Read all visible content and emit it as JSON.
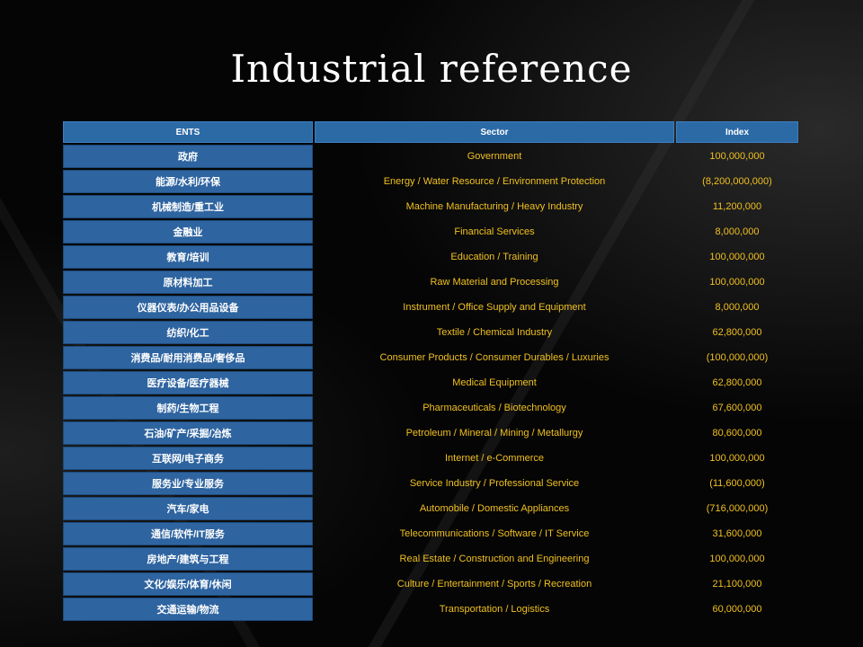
{
  "title": "Industrial reference",
  "table": {
    "headers": [
      "ENTS",
      "Sector",
      "Index"
    ],
    "rows": [
      [
        "政府",
        "Government",
        "100,000,000"
      ],
      [
        "能源/水利/环保",
        "Energy / Water Resource / Environment Protection",
        "(8,200,000,000)"
      ],
      [
        "机械制造/重工业",
        "Machine Manufacturing / Heavy Industry",
        "11,200,000"
      ],
      [
        "金融业",
        "Financial Services",
        "8,000,000"
      ],
      [
        "教育/培训",
        "Education / Training",
        "100,000,000"
      ],
      [
        "原材料加工",
        "Raw Material and Processing",
        "100,000,000"
      ],
      [
        "仪器仪表/办公用品设备",
        "Instrument / Office Supply and Equipment",
        "8,000,000"
      ],
      [
        "纺织/化工",
        "Textile / Chemical Industry",
        "62,800,000"
      ],
      [
        "消费品/耐用消费品/奢侈品",
        "Consumer Products / Consumer Durables / Luxuries",
        "(100,000,000)"
      ],
      [
        "医疗设备/医疗器械",
        "Medical Equipment",
        "62,800,000"
      ],
      [
        "制药/生物工程",
        "Pharmaceuticals / Biotechnology",
        "67,600,000"
      ],
      [
        "石油/矿产/采掘/冶炼",
        "Petroleum / Mineral / Mining / Metallurgy",
        "80,600,000"
      ],
      [
        "互联网/电子商务",
        "Internet / e-Commerce",
        "100,000,000"
      ],
      [
        "服务业/专业服务",
        "Service Industry / Professional Service",
        "(11,600,000)"
      ],
      [
        "汽车/家电",
        "Automobile / Domestic Appliances",
        "(716,000,000)"
      ],
      [
        "通信/软件/IT服务",
        "Telecommunications / Software / IT Service",
        "31,600,000"
      ],
      [
        "房地产/建筑与工程",
        "Real Estate / Construction and Engineering",
        "100,000,000"
      ],
      [
        "文化/娱乐/体育/休闲",
        "Culture / Entertainment / Sports / Recreation",
        "21,100,000"
      ],
      [
        "交通运输/物流",
        "Transportation / Logistics",
        "60,000,000"
      ]
    ]
  },
  "colors": {
    "header_bg": "#2c6aa6",
    "cell_bg": "#2e64a0",
    "value_text": "#f0c020",
    "background": "#050505"
  }
}
